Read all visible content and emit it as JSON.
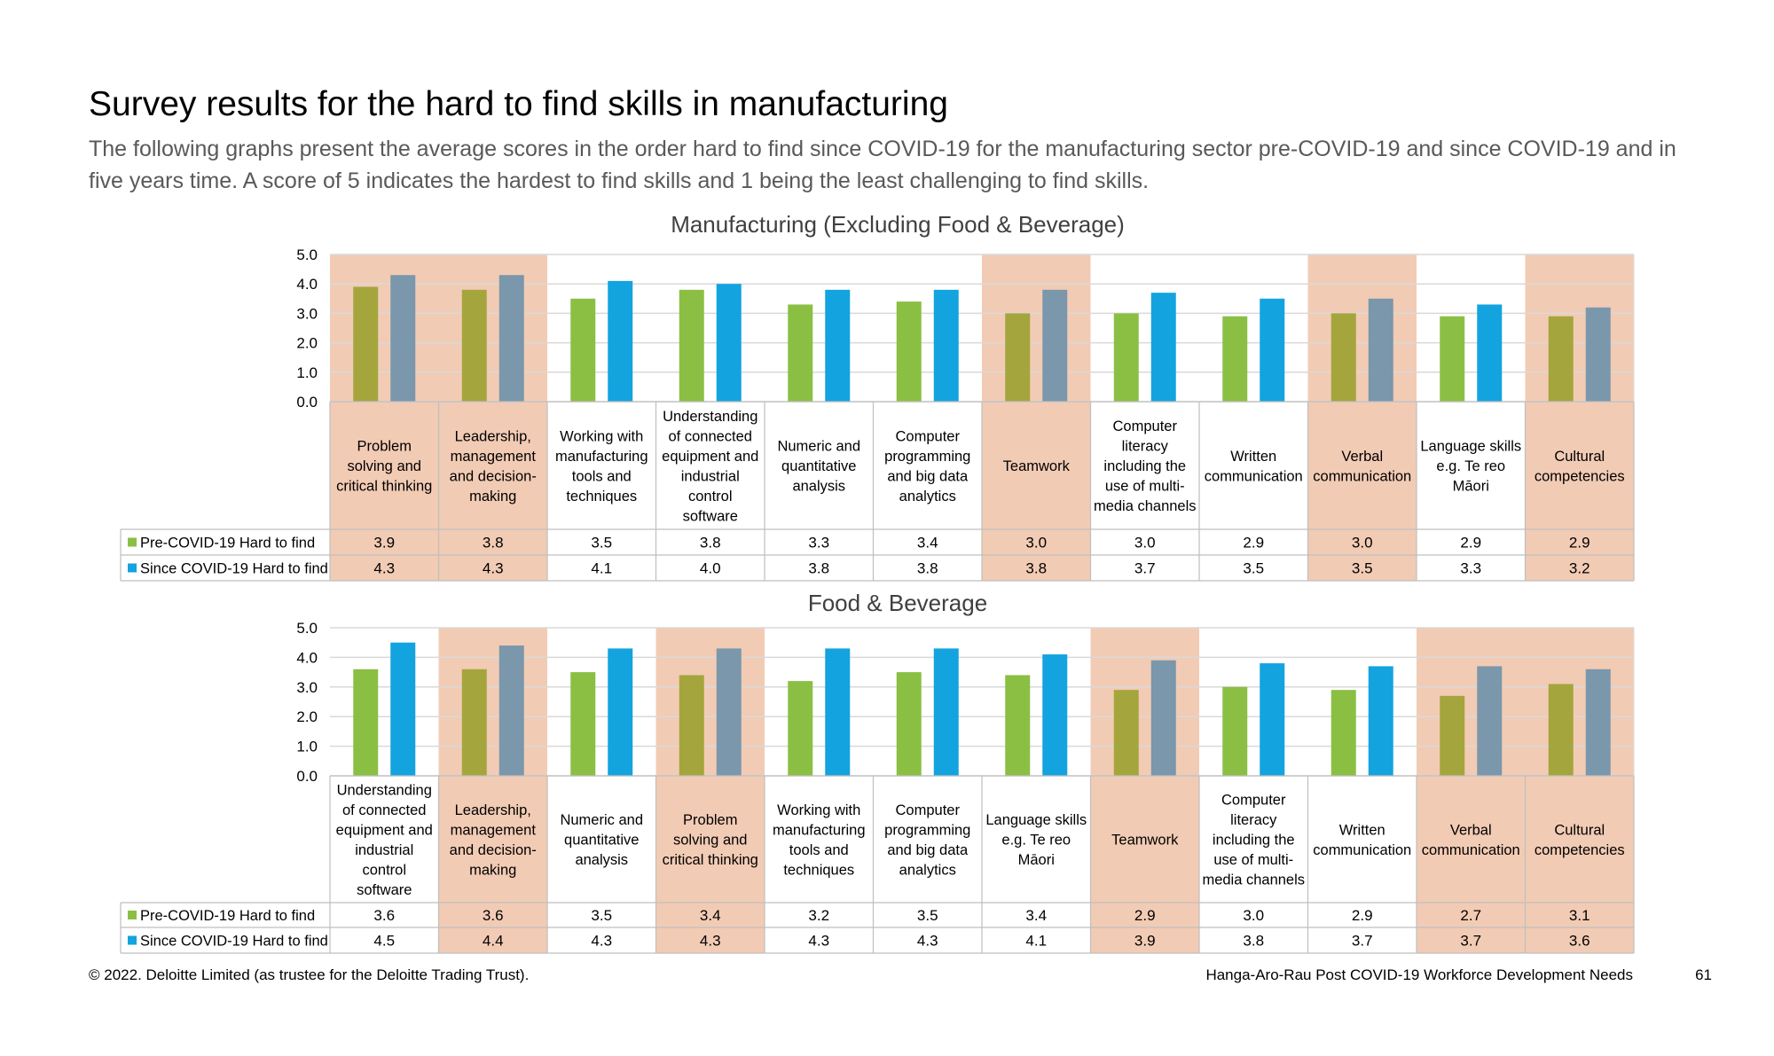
{
  "page": {
    "title": "Survey results for the hard to find skills in manufacturing",
    "subtitle": "The following graphs present the average scores in the order hard to find since COVID-19 for the manufacturing sector pre-COVID-19 and since COVID-19 and in five years time. A score of 5 indicates the hardest to find skills and 1 being the least challenging to find skills.",
    "footer_left": "© 2022. Deloitte Limited (as trustee for the Deloitte Trading Trust).",
    "footer_right": "Hanga-Aro-Rau Post COVID-19 Workforce Development Needs",
    "page_number": "61"
  },
  "colors": {
    "pre": "#8bbf44",
    "since": "#13a3df",
    "pre_highlight": "#a5a53d",
    "since_highlight": "#7a97ab",
    "highlight_bg": "#f2cbb4",
    "grid": "#d9d9d9",
    "border": "#bfbfbf"
  },
  "chart_data": [
    {
      "type": "bar",
      "title": "Manufacturing (Excluding Food & Beverage)",
      "ylim": [
        0,
        5
      ],
      "yticks": [
        "0.0",
        "1.0",
        "2.0",
        "3.0",
        "4.0",
        "5.0"
      ],
      "grid": true,
      "legend": "table-left",
      "categories": [
        [
          "Problem",
          "solving and",
          "critical thinking"
        ],
        [
          "Leadership,",
          "management",
          "and decision-",
          "making"
        ],
        [
          "Working with",
          "manufacturing",
          "tools and",
          "techniques"
        ],
        [
          "Understanding",
          "of connected",
          "equipment and",
          "industrial",
          "control",
          "software"
        ],
        [
          "Numeric and",
          "quantitative",
          "analysis"
        ],
        [
          "Computer",
          "programming",
          "and big data",
          "analytics"
        ],
        [
          "Teamwork"
        ],
        [
          "Computer",
          "literacy",
          "including the",
          "use of multi-",
          "media channels"
        ],
        [
          "Written",
          "communication"
        ],
        [
          "Verbal",
          "communication"
        ],
        [
          "Language skills",
          "e.g. Te reo",
          "Māori"
        ],
        [
          "Cultural",
          "competencies"
        ]
      ],
      "highlighted": [
        true,
        true,
        false,
        false,
        false,
        false,
        true,
        false,
        false,
        true,
        false,
        true
      ],
      "series": [
        {
          "name": "Pre-COVID-19 Hard to find",
          "values": [
            3.9,
            3.8,
            3.5,
            3.8,
            3.3,
            3.4,
            3.0,
            3.0,
            2.9,
            3.0,
            2.9,
            2.9
          ],
          "labels": [
            "3.9",
            "3.8",
            "3.5",
            "3.8",
            "3.3",
            "3.4",
            "3.0",
            "3.0",
            "2.9",
            "3.0",
            "2.9",
            "2.9"
          ]
        },
        {
          "name": "Since COVID-19 Hard to find",
          "values": [
            4.3,
            4.3,
            4.1,
            4.0,
            3.8,
            3.8,
            3.8,
            3.7,
            3.5,
            3.5,
            3.3,
            3.2
          ],
          "labels": [
            "4.3",
            "4.3",
            "4.1",
            "4.0",
            "3.8",
            "3.8",
            "3.8",
            "3.7",
            "3.5",
            "3.5",
            "3.3",
            "3.2"
          ]
        }
      ]
    },
    {
      "type": "bar",
      "title": "Food & Beverage",
      "ylim": [
        0,
        5
      ],
      "yticks": [
        "0.0",
        "1.0",
        "2.0",
        "3.0",
        "4.0",
        "5.0"
      ],
      "grid": true,
      "legend": "table-left",
      "categories": [
        [
          "Understanding",
          "of connected",
          "equipment and",
          "industrial",
          "control",
          "software"
        ],
        [
          "Leadership,",
          "management",
          "and decision-",
          "making"
        ],
        [
          "Numeric and",
          "quantitative",
          "analysis"
        ],
        [
          "Problem",
          "solving and",
          "critical thinking"
        ],
        [
          "Working with",
          "manufacturing",
          "tools and",
          "techniques"
        ],
        [
          "Computer",
          "programming",
          "and big data",
          "analytics"
        ],
        [
          "Language skills",
          "e.g. Te reo",
          "Māori"
        ],
        [
          "Teamwork"
        ],
        [
          "Computer",
          "literacy",
          "including the",
          "use of multi-",
          "media channels"
        ],
        [
          "Written",
          "communication"
        ],
        [
          "Verbal",
          "communication"
        ],
        [
          "Cultural",
          "competencies"
        ]
      ],
      "highlighted": [
        false,
        true,
        false,
        true,
        false,
        false,
        false,
        true,
        false,
        false,
        true,
        true
      ],
      "series": [
        {
          "name": "Pre-COVID-19 Hard to find",
          "values": [
            3.6,
            3.6,
            3.5,
            3.4,
            3.2,
            3.5,
            3.4,
            2.9,
            3.0,
            2.9,
            2.7,
            3.1
          ],
          "labels": [
            "3.6",
            "3.6",
            "3.5",
            "3.4",
            "3.2",
            "3.5",
            "3.4",
            "2.9",
            "3.0",
            "2.9",
            "2.7",
            "3.1"
          ]
        },
        {
          "name": "Since COVID-19 Hard to find",
          "values": [
            4.5,
            4.4,
            4.3,
            4.3,
            4.3,
            4.3,
            4.1,
            3.9,
            3.8,
            3.7,
            3.7,
            3.6
          ],
          "labels": [
            "4.5",
            "4.4",
            "4.3",
            "4.3",
            "4.3",
            "4.3",
            "4.1",
            "3.9",
            "3.8",
            "3.7",
            "3.7",
            "3.6"
          ]
        }
      ]
    }
  ]
}
